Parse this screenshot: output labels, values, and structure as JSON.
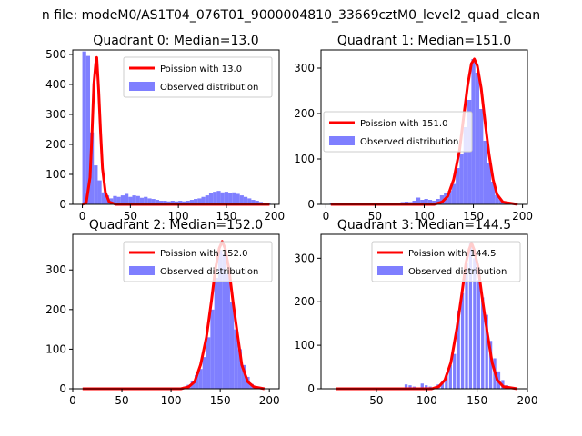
{
  "suptitle": "n file: modeM0/AS1T04_076T01_9000004810_33669cztM0_level2_quad_clean",
  "colors": {
    "hist": "#7f7fff",
    "line": "#ff0000",
    "axis": "#000000"
  },
  "chart_data": [
    {
      "type": "bar",
      "title": "Quadrant 0: Median=13.0",
      "median": 13.0,
      "xlim": [
        -10,
        205
      ],
      "ylim": [
        0,
        515
      ],
      "xticks": [
        0,
        50,
        100,
        150,
        200
      ],
      "xtick_labels": [
        "0",
        "50",
        "100",
        "150",
        "200"
      ],
      "yticks": [
        0,
        100,
        200,
        300,
        400,
        500
      ],
      "ytick_labels": [
        "0",
        "100",
        "200",
        "300",
        "400",
        "500"
      ],
      "legend": {
        "position": "top-right",
        "line_label": "Poission with 13.0",
        "hist_label": "Observed distribution"
      },
      "bin_width": 4,
      "bins": [
        [
          0,
          510
        ],
        [
          4,
          495
        ],
        [
          8,
          240
        ],
        [
          12,
          130
        ],
        [
          16,
          80
        ],
        [
          20,
          40
        ],
        [
          24,
          30
        ],
        [
          28,
          20
        ],
        [
          32,
          28
        ],
        [
          36,
          25
        ],
        [
          40,
          30
        ],
        [
          44,
          35
        ],
        [
          48,
          25
        ],
        [
          52,
          30
        ],
        [
          56,
          28
        ],
        [
          60,
          22
        ],
        [
          64,
          25
        ],
        [
          68,
          20
        ],
        [
          72,
          18
        ],
        [
          76,
          15
        ],
        [
          80,
          12
        ],
        [
          84,
          12
        ],
        [
          88,
          10
        ],
        [
          92,
          12
        ],
        [
          96,
          10
        ],
        [
          100,
          12
        ],
        [
          104,
          10
        ],
        [
          108,
          12
        ],
        [
          112,
          15
        ],
        [
          116,
          18
        ],
        [
          120,
          20
        ],
        [
          124,
          25
        ],
        [
          128,
          30
        ],
        [
          132,
          38
        ],
        [
          136,
          42
        ],
        [
          140,
          45
        ],
        [
          144,
          40
        ],
        [
          148,
          42
        ],
        [
          152,
          38
        ],
        [
          156,
          40
        ],
        [
          160,
          35
        ],
        [
          164,
          30
        ],
        [
          168,
          25
        ],
        [
          172,
          20
        ],
        [
          176,
          15
        ],
        [
          180,
          12
        ],
        [
          184,
          8
        ],
        [
          188,
          6
        ],
        [
          192,
          3
        ]
      ],
      "curve": [
        [
          0,
          0
        ],
        [
          4,
          5
        ],
        [
          8,
          90
        ],
        [
          10,
          230
        ],
        [
          12,
          400
        ],
        [
          14,
          470
        ],
        [
          15,
          490
        ],
        [
          17,
          380
        ],
        [
          19,
          240
        ],
        [
          21,
          120
        ],
        [
          24,
          40
        ],
        [
          28,
          8
        ],
        [
          35,
          0
        ],
        [
          195,
          0
        ]
      ]
    },
    {
      "type": "bar",
      "title": "Quadrant 1: Median=151.0",
      "median": 151.0,
      "xlim": [
        -5,
        205
      ],
      "ylim": [
        0,
        340
      ],
      "xticks": [
        0,
        50,
        100,
        150,
        200
      ],
      "xtick_labels": [
        "0",
        "50",
        "100",
        "150",
        "200"
      ],
      "yticks": [
        0,
        100,
        200,
        300
      ],
      "ytick_labels": [
        "0",
        "100",
        "200",
        "300"
      ],
      "legend": {
        "position": "center-left",
        "line_label": "Poission with 151.0",
        "hist_label": "Observed distribution"
      },
      "bin_width": 4,
      "bins": [
        [
          4,
          3
        ],
        [
          8,
          3
        ],
        [
          12,
          2
        ],
        [
          16,
          3
        ],
        [
          20,
          2
        ],
        [
          24,
          3
        ],
        [
          28,
          2
        ],
        [
          32,
          3
        ],
        [
          36,
          2
        ],
        [
          40,
          3
        ],
        [
          44,
          2
        ],
        [
          48,
          3
        ],
        [
          52,
          2
        ],
        [
          56,
          3
        ],
        [
          60,
          3
        ],
        [
          64,
          4
        ],
        [
          68,
          3
        ],
        [
          72,
          4
        ],
        [
          76,
          5
        ],
        [
          80,
          6
        ],
        [
          84,
          5
        ],
        [
          88,
          8
        ],
        [
          92,
          15
        ],
        [
          96,
          10
        ],
        [
          100,
          12
        ],
        [
          104,
          10
        ],
        [
          108,
          8
        ],
        [
          112,
          12
        ],
        [
          116,
          20
        ],
        [
          120,
          25
        ],
        [
          124,
          30
        ],
        [
          128,
          45
        ],
        [
          132,
          80
        ],
        [
          136,
          110
        ],
        [
          140,
          170
        ],
        [
          144,
          230
        ],
        [
          148,
          320
        ],
        [
          152,
          290
        ],
        [
          156,
          210
        ],
        [
          160,
          140
        ],
        [
          164,
          90
        ],
        [
          168,
          50
        ],
        [
          172,
          20
        ],
        [
          176,
          10
        ],
        [
          180,
          5
        ],
        [
          184,
          3
        ],
        [
          188,
          2
        ]
      ],
      "curve": [
        [
          5,
          0
        ],
        [
          110,
          0
        ],
        [
          118,
          5
        ],
        [
          124,
          18
        ],
        [
          130,
          55
        ],
        [
          136,
          120
        ],
        [
          140,
          190
        ],
        [
          144,
          260
        ],
        [
          148,
          310
        ],
        [
          151,
          320
        ],
        [
          154,
          305
        ],
        [
          158,
          255
        ],
        [
          162,
          180
        ],
        [
          166,
          110
        ],
        [
          170,
          55
        ],
        [
          174,
          22
        ],
        [
          180,
          5
        ],
        [
          195,
          0
        ]
      ]
    },
    {
      "type": "bar",
      "title": "Quadrant 2: Median=152.0",
      "median": 152.0,
      "xlim": [
        0,
        210
      ],
      "ylim": [
        0,
        390
      ],
      "xticks": [
        0,
        50,
        100,
        150,
        200
      ],
      "xtick_labels": [
        "0",
        "50",
        "100",
        "150",
        "200"
      ],
      "yticks": [
        0,
        100,
        200,
        300
      ],
      "ytick_labels": [
        "0",
        "100",
        "200",
        "300"
      ],
      "legend": {
        "position": "top-right",
        "line_label": "Poission with 152.0",
        "hist_label": "Observed distribution"
      },
      "bin_width": 4,
      "bins": [
        [
          108,
          2
        ],
        [
          112,
          5
        ],
        [
          116,
          10
        ],
        [
          120,
          20
        ],
        [
          124,
          35
        ],
        [
          128,
          50
        ],
        [
          132,
          80
        ],
        [
          136,
          130
        ],
        [
          140,
          200
        ],
        [
          144,
          280
        ],
        [
          148,
          350
        ],
        [
          152,
          340
        ],
        [
          156,
          290
        ],
        [
          160,
          220
        ],
        [
          164,
          150
        ],
        [
          168,
          100
        ],
        [
          172,
          60
        ],
        [
          176,
          30
        ],
        [
          180,
          12
        ],
        [
          184,
          5
        ]
      ],
      "curve": [
        [
          10,
          0
        ],
        [
          110,
          0
        ],
        [
          118,
          5
        ],
        [
          124,
          18
        ],
        [
          130,
          60
        ],
        [
          136,
          130
        ],
        [
          141,
          220
        ],
        [
          145,
          300
        ],
        [
          149,
          355
        ],
        [
          152,
          372
        ],
        [
          155,
          355
        ],
        [
          159,
          300
        ],
        [
          163,
          220
        ],
        [
          168,
          130
        ],
        [
          172,
          60
        ],
        [
          178,
          18
        ],
        [
          184,
          5
        ],
        [
          195,
          0
        ]
      ]
    },
    {
      "type": "bar",
      "title": "Quadrant 3: Median=144.5",
      "median": 144.5,
      "xlim": [
        -5,
        200
      ],
      "ylim": [
        0,
        355
      ],
      "xticks": [
        50,
        100,
        150,
        200
      ],
      "xtick_labels": [
        "50",
        "100",
        "150",
        "200"
      ],
      "yticks": [
        0,
        100,
        200,
        300
      ],
      "ytick_labels": [
        "0",
        "100",
        "200",
        "300"
      ],
      "legend": {
        "position": "top-right",
        "line_label": "Poission with 144.5",
        "hist_label": "Observed distribution"
      },
      "bin_width": 3,
      "bins": [
        [
          78,
          10
        ],
        [
          82,
          8
        ],
        [
          86,
          5
        ],
        [
          90,
          3
        ],
        [
          94,
          12
        ],
        [
          98,
          8
        ],
        [
          102,
          5
        ],
        [
          106,
          4
        ],
        [
          110,
          10
        ],
        [
          114,
          15
        ],
        [
          118,
          30
        ],
        [
          122,
          55
        ],
        [
          126,
          80
        ],
        [
          130,
          180
        ],
        [
          134,
          220
        ],
        [
          138,
          290
        ],
        [
          142,
          335
        ],
        [
          146,
          300
        ],
        [
          150,
          250
        ],
        [
          154,
          210
        ],
        [
          158,
          170
        ],
        [
          162,
          110
        ],
        [
          166,
          70
        ],
        [
          170,
          40
        ],
        [
          174,
          20
        ],
        [
          178,
          8
        ]
      ],
      "curve": [
        [
          10,
          0
        ],
        [
          105,
          0
        ],
        [
          112,
          5
        ],
        [
          118,
          20
        ],
        [
          124,
          60
        ],
        [
          130,
          140
        ],
        [
          135,
          220
        ],
        [
          139,
          290
        ],
        [
          142,
          320
        ],
        [
          144.5,
          335
        ],
        [
          147,
          320
        ],
        [
          151,
          280
        ],
        [
          155,
          210
        ],
        [
          160,
          130
        ],
        [
          165,
          60
        ],
        [
          170,
          20
        ],
        [
          176,
          5
        ],
        [
          190,
          0
        ]
      ]
    }
  ]
}
